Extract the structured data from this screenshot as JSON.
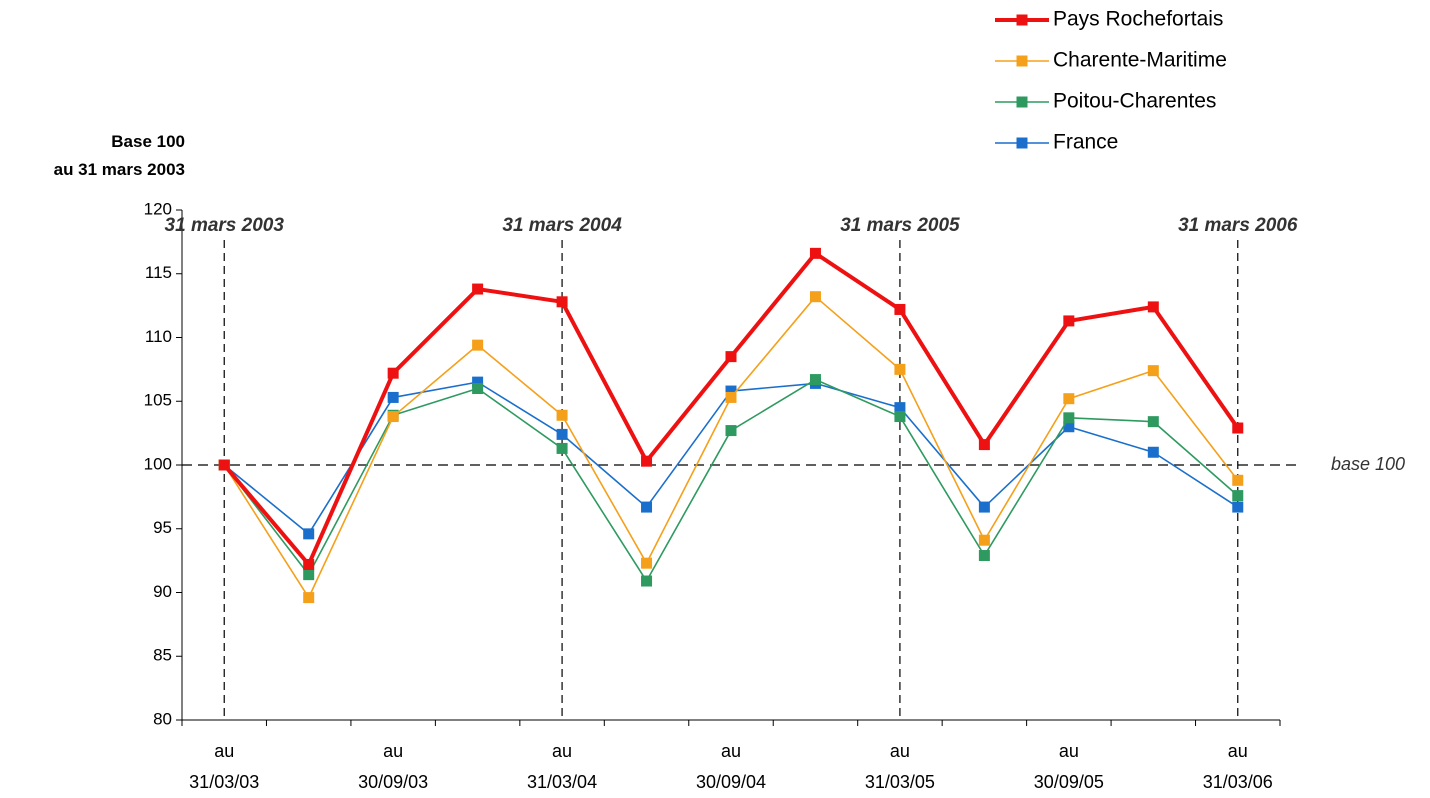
{
  "chart_data": {
    "type": "line",
    "y_axis_title": "Base 100\nau 31 mars 2003",
    "categories": [
      "au\n31/03/03",
      null,
      "au\n30/09/03",
      null,
      "au\n31/03/04",
      null,
      "au\n30/09/04",
      null,
      "au\n31/03/05",
      null,
      "au\n30/09/05",
      null,
      "au\n31/03/06"
    ],
    "series": [
      {
        "name": "Pays Rochefortais",
        "color": "#ee1111",
        "values": [
          100,
          92.2,
          107.2,
          113.8,
          112.8,
          100.3,
          108.5,
          116.6,
          112.2,
          101.6,
          111.3,
          112.4,
          102.9
        ]
      },
      {
        "name": "Charente-Maritime",
        "color": "#f5a01a",
        "values": [
          100,
          89.6,
          103.8,
          109.4,
          103.9,
          92.3,
          105.3,
          113.2,
          107.5,
          94.1,
          105.2,
          107.4,
          98.8
        ]
      },
      {
        "name": "Poitou-Charentes",
        "color": "#2e9a60",
        "values": [
          100,
          91.4,
          103.9,
          106.0,
          101.3,
          90.9,
          102.7,
          106.7,
          103.8,
          92.9,
          103.7,
          103.4,
          97.6
        ]
      },
      {
        "name": "France",
        "color": "#1a6fcc",
        "values": [
          100,
          94.6,
          105.3,
          106.5,
          102.4,
          96.7,
          105.8,
          106.4,
          104.5,
          96.7,
          103.0,
          101.0,
          96.7
        ]
      }
    ],
    "ylim": [
      80,
      120
    ],
    "yticks": [
      80,
      85,
      90,
      95,
      100,
      105,
      110,
      115,
      120
    ],
    "reference_line": {
      "value": 100,
      "label": "base 100"
    },
    "annotations": [
      {
        "text": "31 mars 2003",
        "category": "au\n31/03/03"
      },
      {
        "text": "31 mars 2004",
        "category": "au\n31/03/04"
      },
      {
        "text": "31 mars 2005",
        "category": "au\n31/03/05"
      },
      {
        "text": "31 mars 2006",
        "category": "au\n31/03/06"
      }
    ],
    "legend": "top-right"
  }
}
